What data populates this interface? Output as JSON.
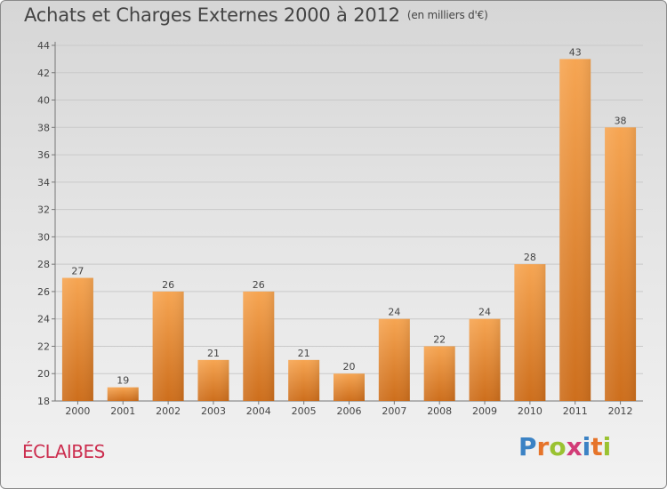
{
  "header": {
    "title": "Achats et Charges Externes 2000 à 2012",
    "unit": "(en milliers d'€)"
  },
  "footer": {
    "commune": "ÉCLAIBES",
    "logo_text": "Proxiti"
  },
  "colors": {
    "bar_top": "#f6a552",
    "bar_bottom": "#cd6e1c",
    "commune": "#cc2e4f",
    "logo_letters": [
      "#3b82c4",
      "#e6742a",
      "#9ac231",
      "#d23c77",
      "#3b82c4",
      "#e6742a",
      "#9ac231"
    ]
  },
  "chart_data": {
    "type": "bar",
    "title": "Achats et Charges Externes 2000 à 2012",
    "subtitle": "(en milliers d'€)",
    "xlabel": "",
    "ylabel": "",
    "categories": [
      "2000",
      "2001",
      "2002",
      "2003",
      "2004",
      "2005",
      "2006",
      "2007",
      "2008",
      "2009",
      "2010",
      "2011",
      "2012"
    ],
    "values": [
      27,
      19,
      26,
      21,
      26,
      21,
      20,
      24,
      22,
      24,
      28,
      43,
      38
    ],
    "ylim": [
      18,
      44
    ],
    "yticks": [
      18,
      20,
      22,
      24,
      26,
      28,
      30,
      32,
      34,
      36,
      38,
      40,
      42,
      44
    ],
    "grid": true,
    "data_labels": true
  }
}
